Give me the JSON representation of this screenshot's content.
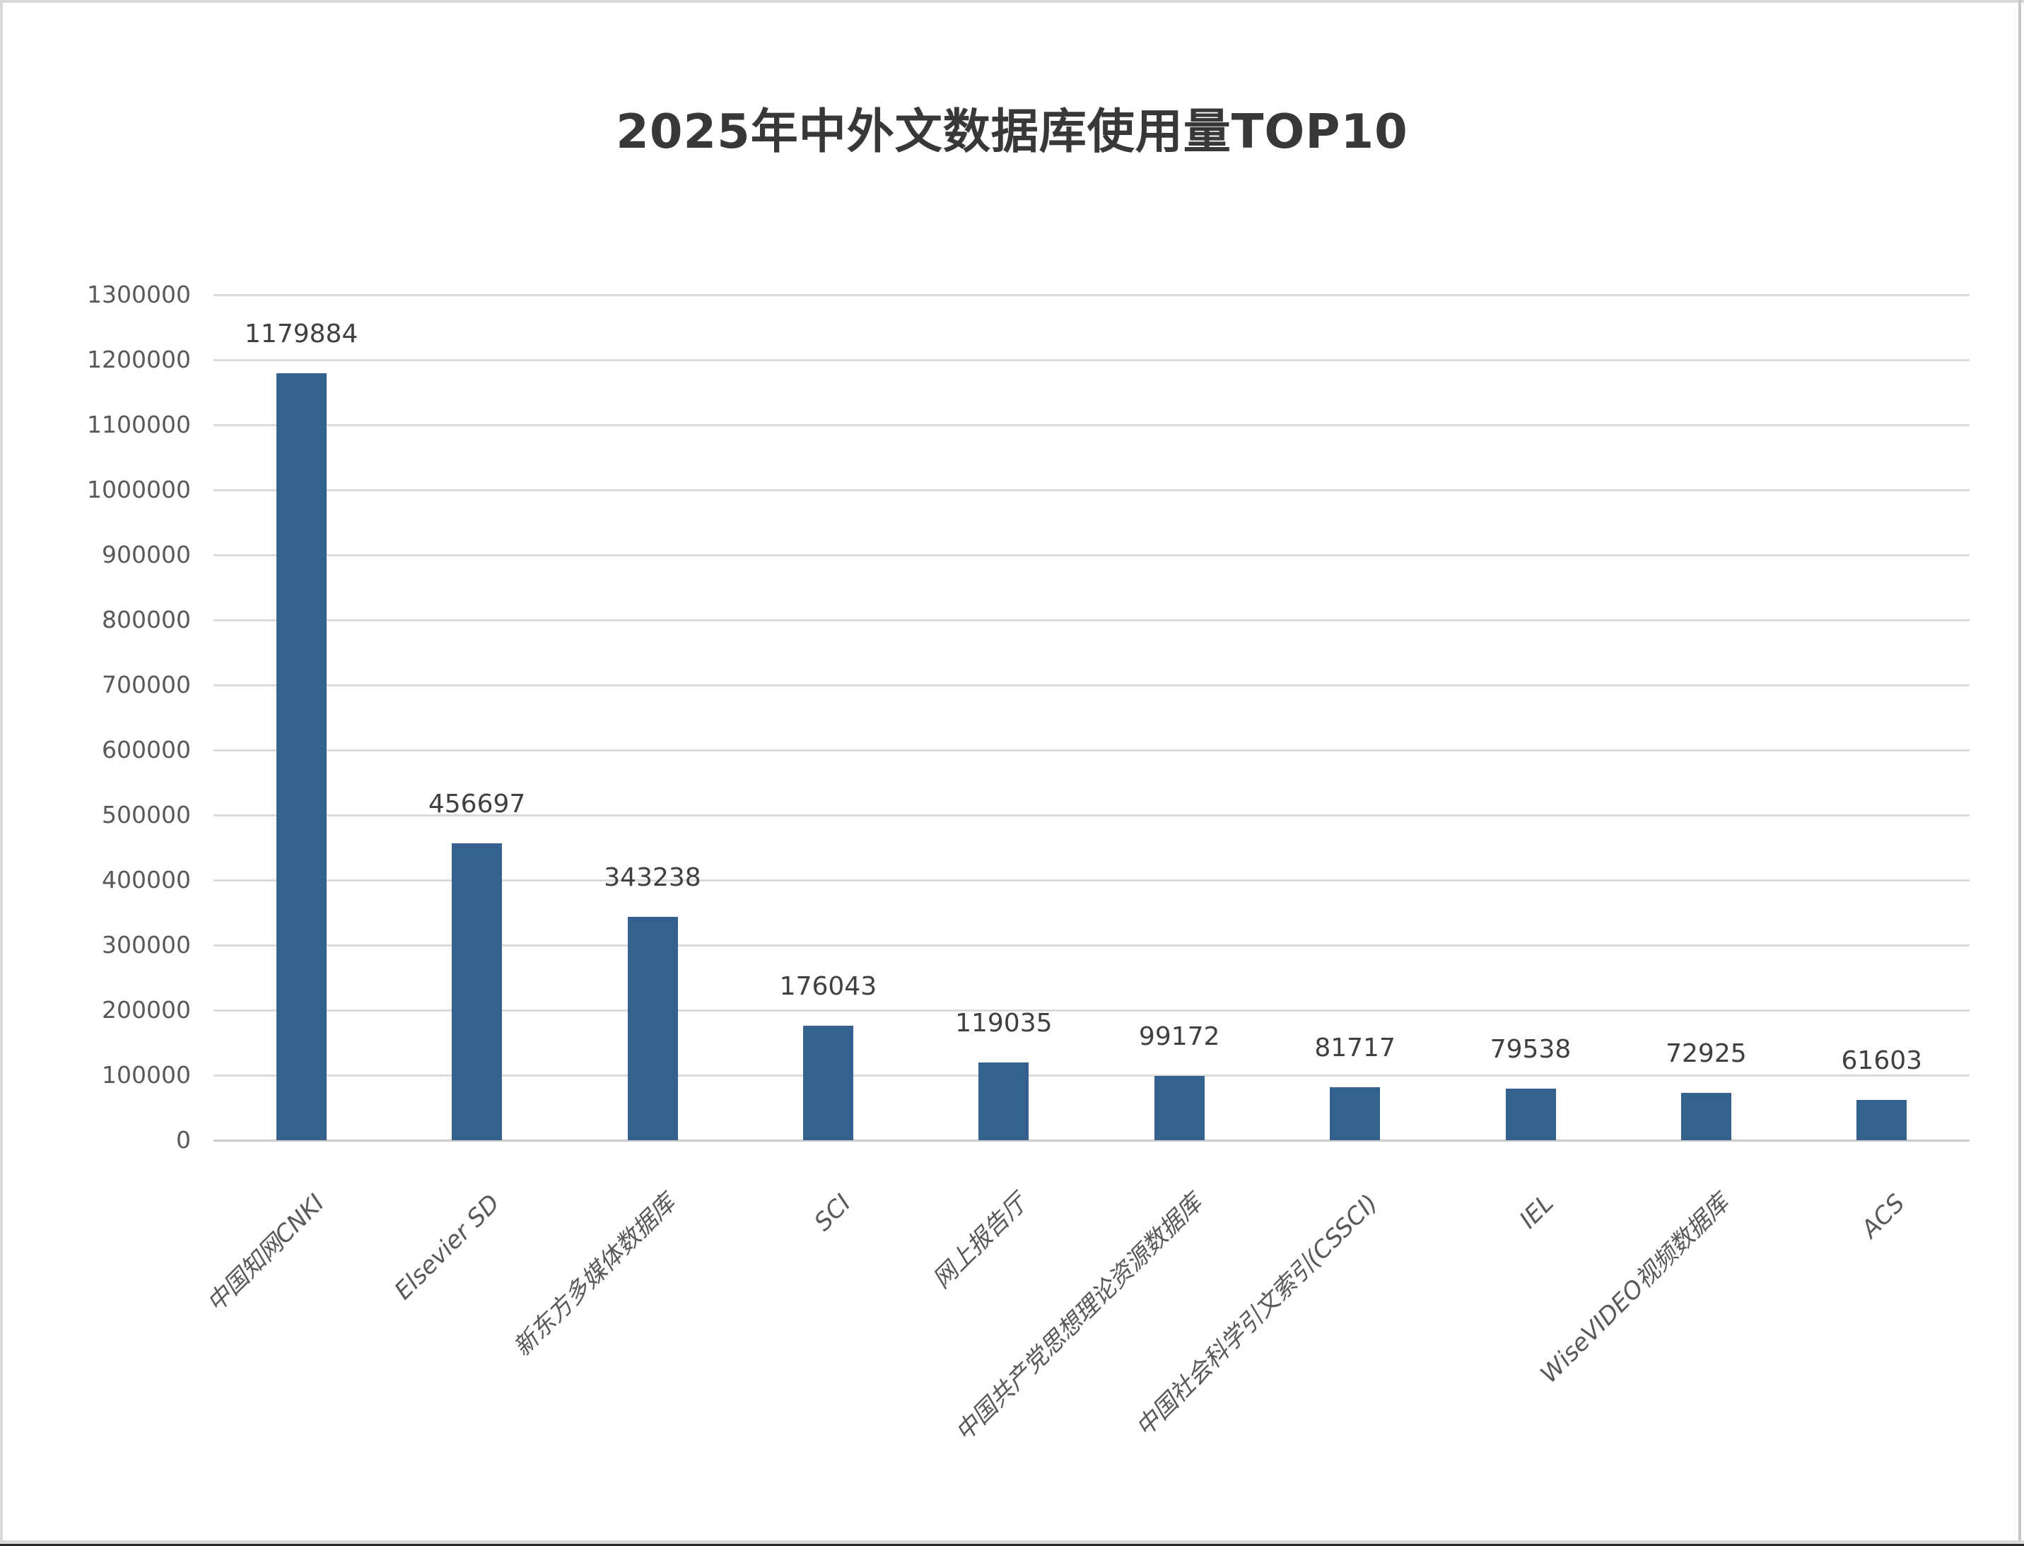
{
  "title": "2025年中外文数据库使用量TOP10",
  "chart_data": {
    "type": "bar",
    "title": "2025年中外文数据库使用量TOP10",
    "categories": [
      "中国知网CNKI",
      "Elsevier SD",
      "新东方多媒体数据库",
      "SCI",
      "网上报告厅",
      "中国共产党思想理论资源数据库",
      "中国社会科学引文索引(CSSCI)",
      "IEL",
      "WiseVIDEO视频数据库",
      "ACS"
    ],
    "values": [
      1179884,
      456697,
      343238,
      176043,
      119035,
      99172,
      81717,
      79538,
      72925,
      61603
    ],
    "data_labels": [
      "1179884",
      "456697",
      "343238",
      "176043",
      "119035",
      "99172",
      "81717",
      "79538",
      "72925",
      "61603"
    ],
    "xlabel": "",
    "ylabel": "",
    "ylim": [
      0,
      1300000
    ],
    "y_tick_interval": 100000,
    "y_ticks": [
      "0",
      "100000",
      "200000",
      "300000",
      "400000",
      "500000",
      "600000",
      "700000",
      "800000",
      "900000",
      "1000000",
      "1100000",
      "1200000",
      "1300000"
    ],
    "grid": true,
    "legend": "none",
    "x_label_rotation_deg": 45
  },
  "colors": {
    "background": "#FFFFFF",
    "bar": "#35618F",
    "gridline": "#DBDBDB",
    "axis_line": "#CCCCCC",
    "tick_text": "#595959",
    "data_label_text": "#404040",
    "title_text": "#383838",
    "border_top_left": "#D9D9D9",
    "border_right": "#C7C7C7",
    "bottom_strip_light": "#D9D9D9",
    "bottom_strip_dark": "#2B2B2B"
  }
}
